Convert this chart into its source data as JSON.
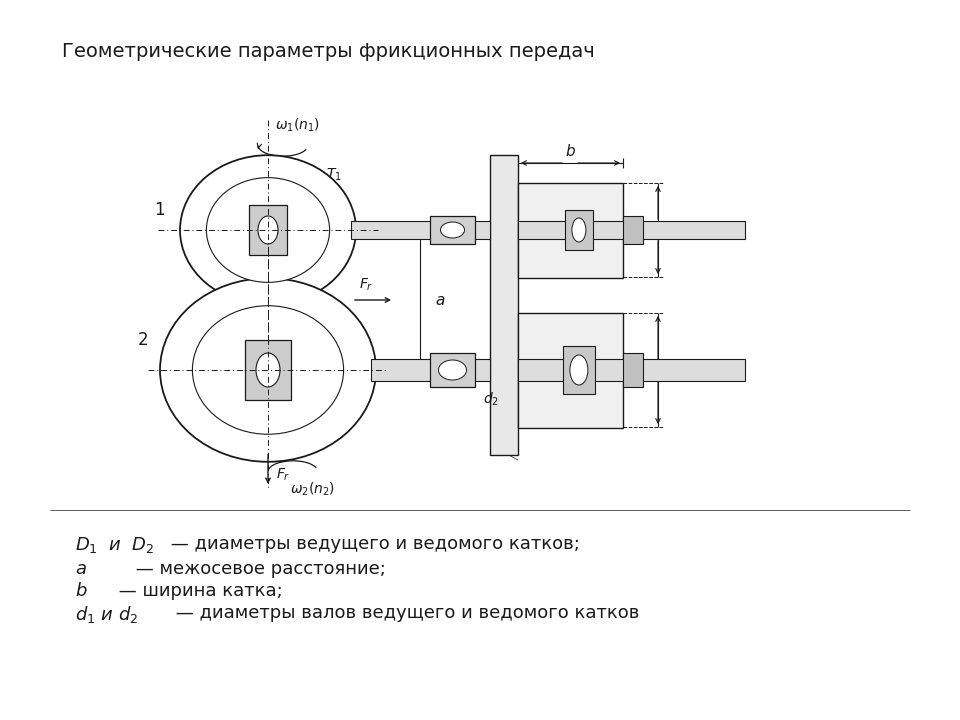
{
  "title": "Геометрические параметры фрикционных передач",
  "bg_color": "#ffffff",
  "line_color": "#1a1a1a",
  "line_width": 1.0,
  "fig_w": 9.6,
  "fig_h": 7.2,
  "legend_lines": [
    {
      "text": "D₁  и  D₂ — диаметры ведущего и ведомого катков;",
      "italic_prefix": "D₁  и  D₂"
    },
    {
      "text": "a — межосевое расстояние;",
      "italic_prefix": "a"
    },
    {
      "text": "b — ширина катка;",
      "italic_prefix": "b"
    },
    {
      "text": "d₁ и d₂ — диаметры валов ведущего и ведомого катков",
      "italic_prefix": "d₁ и d₂"
    }
  ]
}
